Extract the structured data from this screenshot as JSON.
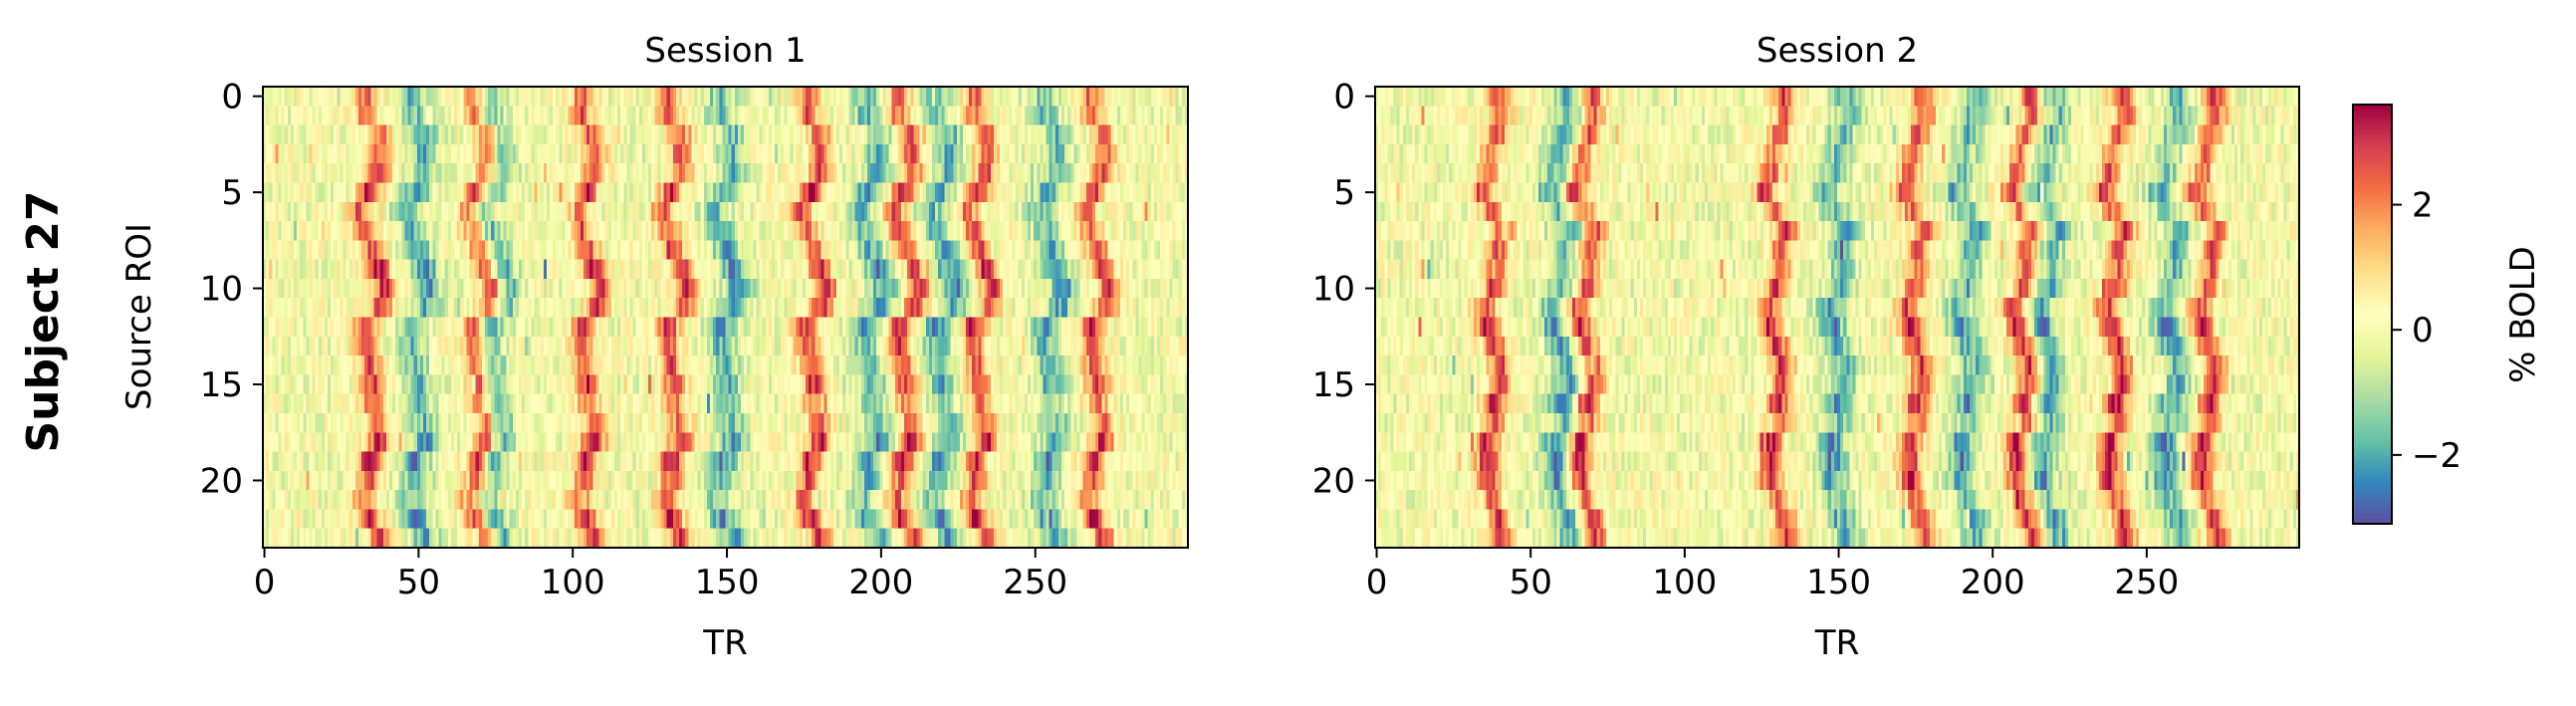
{
  "figure": {
    "row_label": "Subject 27"
  },
  "colormap": {
    "name": "Spectral_r",
    "stops": [
      "#5e4fa2",
      "#3288bd",
      "#66c2a5",
      "#abdda4",
      "#e6f598",
      "#ffffbf",
      "#fee08b",
      "#fdae61",
      "#f46d43",
      "#d53e4f",
      "#9e0142"
    ]
  },
  "colorbar": {
    "label": "% BOLD",
    "range": [
      -3.1,
      3.6
    ],
    "ticks": [
      -2,
      0,
      2
    ],
    "tick_labels": [
      "−2",
      "0",
      "2"
    ]
  },
  "chart_data": [
    {
      "type": "heatmap",
      "title": "Session 1",
      "xlabel": "TR",
      "ylabel": "Source ROI",
      "x_range": [
        0,
        299
      ],
      "y_range": [
        0,
        23
      ],
      "y_inverted": true,
      "n_rows": 24,
      "n_cols": 300,
      "xticks": [
        0,
        50,
        100,
        150,
        200,
        250
      ],
      "yticks": [
        0,
        5,
        10,
        15,
        20
      ],
      "value_range": [
        -3.1,
        3.6
      ],
      "peak_TRs": [
        35,
        70,
        105,
        133,
        178,
        208,
        232,
        270
      ],
      "trough_TRs": [
        50,
        75,
        150,
        197,
        220,
        255
      ],
      "seed": 27
    },
    {
      "type": "heatmap",
      "title": "Session 2",
      "xlabel": "TR",
      "ylabel": "",
      "x_range": [
        0,
        299
      ],
      "y_range": [
        0,
        23
      ],
      "y_inverted": true,
      "n_rows": 24,
      "n_cols": 300,
      "xticks": [
        0,
        50,
        100,
        150,
        200,
        250
      ],
      "yticks": [
        0,
        5,
        10,
        15,
        20
      ],
      "value_range": [
        -3.1,
        3.6
      ],
      "peak_TRs": [
        38,
        68,
        130,
        175,
        210,
        240,
        270
      ],
      "trough_TRs": [
        60,
        150,
        192,
        218,
        258
      ],
      "seed": 54
    }
  ]
}
